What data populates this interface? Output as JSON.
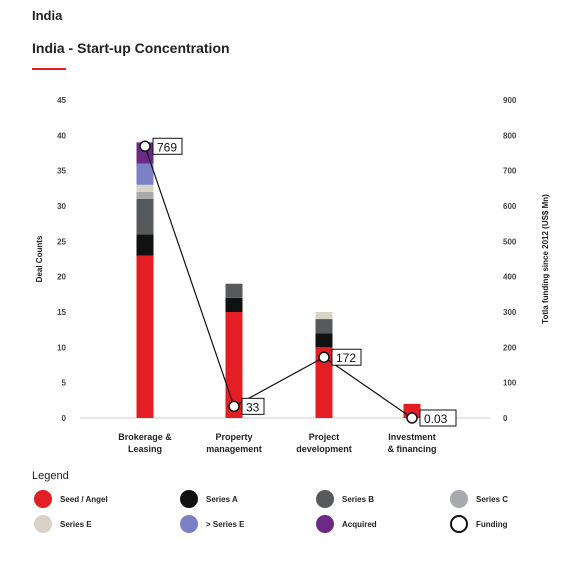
{
  "header": {
    "country": "India",
    "title": "India - Start-up Concentration",
    "accent_color": "#e31e24"
  },
  "chart_data": {
    "type": "bar",
    "stacked": true,
    "title": "India - Start-up Concentration",
    "categories": [
      "Brokerage & Leasing",
      "Property management",
      "Project development",
      "Investment & financing"
    ],
    "category_lines": [
      [
        "Brokerage &",
        "Leasing"
      ],
      [
        "Property",
        "management"
      ],
      [
        "Project",
        "development"
      ],
      [
        "Investment",
        "& financing"
      ]
    ],
    "ylabel": "Deal Counts",
    "ylim": [
      0,
      45
    ],
    "yticks": [
      0,
      5,
      10,
      15,
      20,
      25,
      30,
      35,
      40,
      45
    ],
    "y2label": "Totla funding since 2012 (US$ Mn)",
    "y2lim": [
      0,
      900
    ],
    "y2ticks": [
      0,
      100,
      200,
      300,
      400,
      500,
      600,
      700,
      800,
      900
    ],
    "series": [
      {
        "name": "Seed / Angel",
        "color": "#e31e24",
        "values": [
          23,
          15,
          10,
          2
        ]
      },
      {
        "name": "Series A",
        "color": "#111111",
        "values": [
          3,
          2,
          2,
          0
        ]
      },
      {
        "name": "Series B",
        "color": "#58595b",
        "values": [
          5,
          2,
          2,
          0
        ]
      },
      {
        "name": "Series C",
        "color": "#a7a9ac",
        "values": [
          1,
          0,
          0,
          0
        ]
      },
      {
        "name": "Series E",
        "color": "#d9d3c7",
        "values": [
          1,
          0,
          1,
          0
        ]
      },
      {
        "name": "> Series E",
        "color": "#7b7fc4",
        "values": [
          3,
          0,
          0,
          0
        ]
      },
      {
        "name": "Acquired",
        "color": "#6b2a86",
        "values": [
          3,
          0,
          0,
          0
        ]
      }
    ],
    "line_series": {
      "name": "Funding",
      "axis": "right",
      "values": [
        769,
        33,
        172,
        0.03
      ],
      "labels": [
        "769",
        "33",
        "172",
        "0.03"
      ]
    },
    "legend_title": "Legend",
    "legend": [
      {
        "name": "Seed / Angel",
        "color": "#e31e24",
        "hollow": false
      },
      {
        "name": "Series A",
        "color": "#111111",
        "hollow": false
      },
      {
        "name": "Series B",
        "color": "#58595b",
        "hollow": false
      },
      {
        "name": "Series C",
        "color": "#a7a9ac",
        "hollow": false
      },
      {
        "name": "Series E",
        "color": "#d9d3c7",
        "hollow": false
      },
      {
        "name": "> Series E",
        "color": "#7b7fc4",
        "hollow": false
      },
      {
        "name": "Acquired",
        "color": "#6b2a86",
        "hollow": false
      },
      {
        "name": "Funding",
        "color": "#111111",
        "hollow": true
      }
    ],
    "legend_placement": "bottom"
  }
}
